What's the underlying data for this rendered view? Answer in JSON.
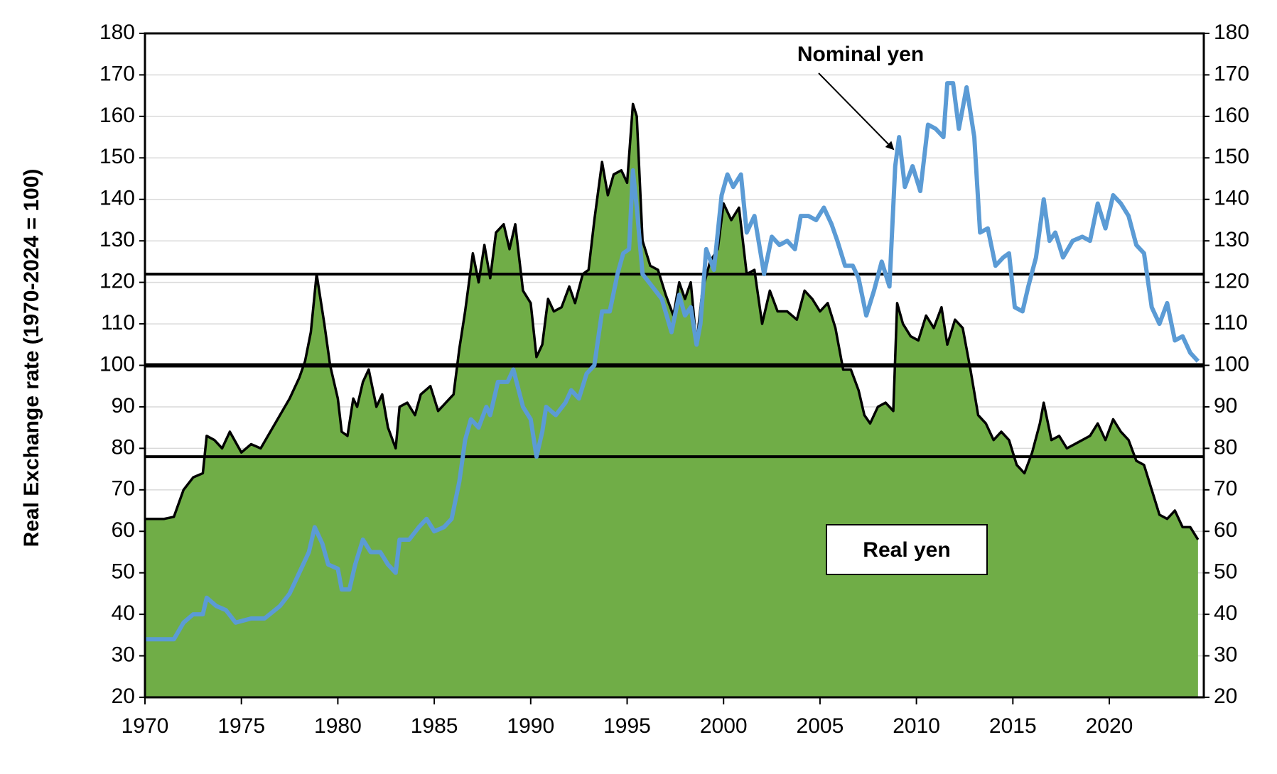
{
  "chart_data": {
    "type": "area_line",
    "y_label": "Real Exchange rate (1970-2024 = 100)",
    "xlim": [
      1970,
      2024.9
    ],
    "xticks": [
      1970,
      1975,
      1980,
      1985,
      1990,
      1995,
      2000,
      2005,
      2010,
      2015,
      2020
    ],
    "ylim": [
      20,
      180
    ],
    "yticks": [
      20,
      30,
      40,
      50,
      60,
      70,
      80,
      90,
      100,
      110,
      120,
      130,
      140,
      150,
      160,
      170,
      180
    ],
    "y2lim": [
      20,
      180
    ],
    "y2ticks": [
      20,
      30,
      40,
      50,
      60,
      70,
      80,
      90,
      100,
      110,
      120,
      130,
      140,
      150,
      160,
      170,
      180
    ],
    "grid": true,
    "reference_lines": [
      122,
      100,
      78
    ],
    "annotations": [
      "Nominal yen",
      "Real yen"
    ],
    "series": [
      {
        "name": "Real yen",
        "kind": "area",
        "color": "#70ad47",
        "line_color": "#000000",
        "x": [
          1970.0,
          1971.0,
          1971.5,
          1972.0,
          1972.5,
          1973.0,
          1973.2,
          1973.6,
          1974.0,
          1974.4,
          1975.0,
          1975.5,
          1976.0,
          1976.5,
          1977.0,
          1977.5,
          1978.0,
          1978.3,
          1978.6,
          1978.9,
          1979.3,
          1979.6,
          1980.0,
          1980.2,
          1980.5,
          1980.8,
          1981.0,
          1981.3,
          1981.6,
          1982.0,
          1982.3,
          1982.6,
          1983.0,
          1983.2,
          1983.6,
          1984.0,
          1984.3,
          1984.8,
          1985.2,
          1985.6,
          1986.0,
          1986.3,
          1986.6,
          1987.0,
          1987.3,
          1987.6,
          1987.9,
          1988.2,
          1988.6,
          1988.9,
          1989.2,
          1989.6,
          1990.0,
          1990.3,
          1990.6,
          1990.9,
          1991.2,
          1991.6,
          1992.0,
          1992.3,
          1992.7,
          1993.0,
          1993.3,
          1993.7,
          1994.0,
          1994.3,
          1994.7,
          1995.0,
          1995.3,
          1995.5,
          1995.8,
          1996.2,
          1996.6,
          1997.0,
          1997.4,
          1997.7,
          1998.0,
          1998.3,
          1998.6,
          1998.9,
          1999.3,
          1999.7,
          2000.0,
          2000.4,
          2000.8,
          2001.2,
          2001.6,
          2002.0,
          2002.4,
          2002.8,
          2003.3,
          2003.8,
          2004.2,
          2004.6,
          2005.0,
          2005.4,
          2005.8,
          2006.2,
          2006.6,
          2007.0,
          2007.3,
          2007.6,
          2008.0,
          2008.4,
          2008.8,
          2009.0,
          2009.3,
          2009.7,
          2010.1,
          2010.5,
          2010.9,
          2011.3,
          2011.6,
          2012.0,
          2012.4,
          2012.8,
          2013.2,
          2013.6,
          2014.0,
          2014.4,
          2014.8,
          2015.2,
          2015.6,
          2016.0,
          2016.4,
          2016.6,
          2017.0,
          2017.4,
          2017.8,
          2018.2,
          2018.6,
          2019.0,
          2019.4,
          2019.8,
          2020.2,
          2020.6,
          2021.0,
          2021.4,
          2021.8,
          2022.2,
          2022.6,
          2023.0,
          2023.4,
          2023.8,
          2024.2,
          2024.6
        ],
        "values": [
          63,
          63,
          63.5,
          70,
          73,
          74,
          83,
          82,
          80,
          84,
          79,
          81,
          80,
          84,
          88,
          92,
          97,
          101,
          108,
          122,
          110,
          100,
          92,
          84,
          83,
          92,
          90,
          96,
          99,
          90,
          93,
          85,
          80,
          90,
          91,
          88,
          93,
          95,
          89,
          91,
          93,
          104,
          113,
          127,
          120,
          129,
          121,
          132,
          134,
          128,
          134,
          118,
          115,
          102,
          105,
          116,
          113,
          114,
          119,
          115,
          122,
          123,
          135,
          149,
          141,
          146,
          147,
          144,
          163,
          160,
          130,
          124,
          123,
          117,
          112,
          120,
          116,
          120,
          105,
          118,
          125,
          128,
          139,
          135,
          138,
          122,
          123,
          110,
          118,
          113,
          113,
          111,
          118,
          116,
          113,
          115,
          109,
          99,
          99,
          94,
          88,
          86,
          90,
          91,
          89,
          115,
          110,
          107,
          106,
          112,
          109,
          114,
          105,
          111,
          109,
          99,
          88,
          86,
          82,
          84,
          82,
          76,
          74,
          79,
          86,
          91,
          82,
          83,
          80,
          81,
          82,
          83,
          86,
          82,
          87,
          84,
          82,
          77,
          76,
          70,
          64,
          63,
          65,
          61,
          61,
          58
        ]
      },
      {
        "name": "Nominal yen",
        "kind": "line",
        "color": "#5b9bd5",
        "x": [
          1970.0,
          1971.5,
          1972.0,
          1972.5,
          1973.0,
          1973.2,
          1973.7,
          1974.2,
          1974.7,
          1975.5,
          1976.2,
          1977.0,
          1977.5,
          1978.0,
          1978.5,
          1978.8,
          1979.2,
          1979.5,
          1980.0,
          1980.2,
          1980.6,
          1980.9,
          1981.3,
          1981.7,
          1982.2,
          1982.6,
          1983.0,
          1983.2,
          1983.7,
          1984.2,
          1984.6,
          1985.0,
          1985.5,
          1985.9,
          1986.3,
          1986.6,
          1986.9,
          1987.3,
          1987.7,
          1987.9,
          1988.3,
          1988.8,
          1989.1,
          1989.6,
          1990.0,
          1990.3,
          1990.6,
          1990.8,
          1991.3,
          1991.8,
          1992.1,
          1992.5,
          1992.9,
          1993.3,
          1993.7,
          1994.1,
          1994.5,
          1994.8,
          1995.1,
          1995.3,
          1995.5,
          1995.8,
          1996.3,
          1996.8,
          1997.3,
          1997.7,
          1998.0,
          1998.3,
          1998.6,
          1998.8,
          1999.1,
          1999.5,
          1999.9,
          2000.2,
          2000.5,
          2000.9,
          2001.2,
          2001.6,
          2002.1,
          2002.5,
          2002.9,
          2003.3,
          2003.7,
          2004.0,
          2004.4,
          2004.8,
          2005.2,
          2005.6,
          2005.9,
          2006.3,
          2006.7,
          2007.0,
          2007.4,
          2007.8,
          2008.2,
          2008.6,
          2008.9,
          2009.1,
          2009.4,
          2009.8,
          2010.2,
          2010.6,
          2011.0,
          2011.4,
          2011.6,
          2011.9,
          2012.2,
          2012.6,
          2013.0,
          2013.3,
          2013.7,
          2014.1,
          2014.5,
          2014.8,
          2015.1,
          2015.5,
          2015.8,
          2016.2,
          2016.6,
          2016.9,
          2017.2,
          2017.6,
          2018.1,
          2018.6,
          2019.0,
          2019.4,
          2019.8,
          2020.2,
          2020.6,
          2021.0,
          2021.4,
          2021.8,
          2022.2,
          2022.6,
          2023.0,
          2023.4,
          2023.8,
          2024.2,
          2024.6
        ],
        "values": [
          34,
          34,
          38,
          40,
          40,
          44,
          42,
          41,
          38,
          39,
          39,
          42,
          45,
          50,
          55,
          61,
          57,
          52,
          51,
          46,
          46,
          52,
          58,
          55,
          55,
          52,
          50,
          58,
          58,
          61,
          63,
          60,
          61,
          63,
          72,
          82,
          87,
          85,
          90,
          88,
          96,
          96,
          99,
          90,
          87,
          78,
          84,
          90,
          88,
          91,
          94,
          92,
          98,
          100,
          113,
          113,
          122,
          127,
          128,
          147,
          138,
          122,
          119,
          116,
          108,
          117,
          112,
          114,
          105,
          110,
          128,
          123,
          141,
          146,
          143,
          146,
          132,
          136,
          122,
          131,
          129,
          130,
          128,
          136,
          136,
          135,
          138,
          134,
          130,
          124,
          124,
          121,
          112,
          118,
          125,
          119,
          148,
          155,
          143,
          148,
          142,
          158,
          157,
          155,
          168,
          168,
          157,
          167,
          155,
          132,
          133,
          124,
          126,
          127,
          114,
          113,
          119,
          126,
          140,
          130,
          132,
          126,
          130,
          131,
          130,
          139,
          133,
          141,
          139,
          136,
          129,
          127,
          114,
          110,
          115,
          106,
          107,
          103,
          101
        ]
      }
    ]
  }
}
